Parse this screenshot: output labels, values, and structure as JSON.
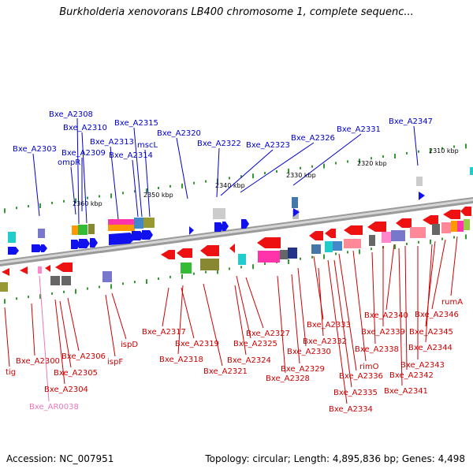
{
  "title": "Burkholderia xenovorans LB400 chromosome 1, complete sequenc...",
  "footer": {
    "accession": "Accession: NC_007951",
    "summary": "Topology: circular; Length: 4,895,836 bp; Genes: 4,498"
  },
  "scale_labels": [
    "2310 kbp",
    "2320 kbp",
    "2330 kbp",
    "2340 kbp",
    "2350 kbp",
    "2360 kbp"
  ],
  "genes_top": [
    "Bxe_A2308",
    "Bxe_A2310",
    "Bxe_A2315",
    "Bxe_A2313",
    "mscL",
    "Bxe_A2320",
    "Bxe_A2303",
    "Bxe_A2309",
    "Bxe_A2314",
    "ompR",
    "Bxe_A2322",
    "Bxe_A2323",
    "Bxe_A2326",
    "Bxe_A2331",
    "Bxe_A2347"
  ],
  "genes_bottom": [
    "rumA",
    "Bxe_A2346",
    "Bxe_A2340",
    "Bxe_A2345",
    "Bxe_A2333",
    "Bxe_A2339",
    "Bxe_A2317",
    "Bxe_A2327",
    "Bxe_A2344",
    "ispD",
    "Bxe_A2319",
    "Bxe_A2325",
    "Bxe_A2332",
    "Bxe_A2338",
    "Bxe_A2306",
    "Bxe_A2330",
    "Bxe_A2300",
    "ispF",
    "Bxe_A2318",
    "Bxe_A2324",
    "Bxe_A2343",
    "rimO",
    "Bxe_A2305",
    "Bxe_A2321",
    "Bxe_A2329",
    "Bxe_A2342",
    "tig",
    "Bxe_A2336",
    "Bxe_A2328",
    "Bxe_A2304",
    "Bxe_A2335",
    "Bxe_A2341",
    "Bxe_AR0038",
    "Bxe_A2334"
  ]
}
